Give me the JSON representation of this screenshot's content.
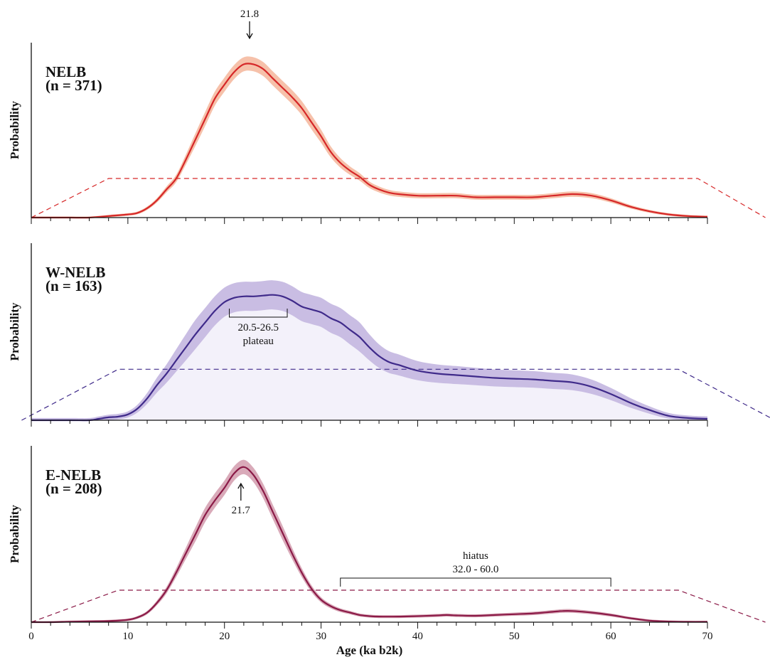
{
  "chart_data": {
    "type": "area",
    "xlabel": "Age (ka b2k)",
    "ylabel": "Probability",
    "xlim": [
      0,
      70
    ],
    "x_ticks": [
      0,
      10,
      20,
      30,
      40,
      50,
      60,
      70
    ],
    "x_tick_labels": [
      "0",
      "10",
      "20",
      "30",
      "40",
      "50",
      "60",
      "70"
    ],
    "grid": false,
    "panels": [
      {
        "title": "NELB",
        "subtitle": "(n = 371)",
        "line_color": "#d62728",
        "band_color": "#f6c1aa",
        "ylim": [
          0,
          1.0
        ],
        "dashed_envelope": [
          [
            0,
            0
          ],
          [
            8,
            0.25
          ],
          [
            69,
            0.25
          ],
          [
            76,
            0
          ]
        ],
        "points": [
          [
            0,
            0
          ],
          [
            2,
            0
          ],
          [
            4,
            0
          ],
          [
            6,
            0
          ],
          [
            8,
            0.01
          ],
          [
            10,
            0.02
          ],
          [
            11,
            0.03
          ],
          [
            12,
            0.06
          ],
          [
            13,
            0.11
          ],
          [
            14,
            0.18
          ],
          [
            15,
            0.25
          ],
          [
            16,
            0.37
          ],
          [
            17,
            0.5
          ],
          [
            18,
            0.63
          ],
          [
            19,
            0.76
          ],
          [
            20,
            0.85
          ],
          [
            21,
            0.93
          ],
          [
            22,
            0.98
          ],
          [
            23,
            0.98
          ],
          [
            24,
            0.95
          ],
          [
            25,
            0.89
          ],
          [
            26,
            0.83
          ],
          [
            27,
            0.77
          ],
          [
            28,
            0.7
          ],
          [
            29,
            0.61
          ],
          [
            30,
            0.52
          ],
          [
            31,
            0.42
          ],
          [
            32,
            0.35
          ],
          [
            33,
            0.3
          ],
          [
            34,
            0.26
          ],
          [
            35,
            0.21
          ],
          [
            36,
            0.18
          ],
          [
            37,
            0.16
          ],
          [
            38,
            0.15
          ],
          [
            40,
            0.14
          ],
          [
            42,
            0.14
          ],
          [
            44,
            0.14
          ],
          [
            46,
            0.13
          ],
          [
            48,
            0.13
          ],
          [
            50,
            0.13
          ],
          [
            52,
            0.13
          ],
          [
            54,
            0.14
          ],
          [
            56,
            0.15
          ],
          [
            58,
            0.14
          ],
          [
            60,
            0.11
          ],
          [
            62,
            0.07
          ],
          [
            64,
            0.04
          ],
          [
            66,
            0.02
          ],
          [
            68,
            0.01
          ],
          [
            70,
            0.005
          ]
        ],
        "band_halfwidth": 0.045,
        "annotations": [
          {
            "text": "21.8",
            "x": 22.6,
            "kind": "arrow-down"
          }
        ]
      },
      {
        "title": "W-NELB",
        "subtitle": "(n = 163)",
        "line_color": "#3f2a8a",
        "band_color": "#c9bde3",
        "ylim": [
          0,
          1.0
        ],
        "dashed_envelope": [
          [
            -1,
            0
          ],
          [
            9,
            0.35
          ],
          [
            67,
            0.35
          ],
          [
            77,
            0
          ]
        ],
        "points": [
          [
            0,
            0
          ],
          [
            4,
            0
          ],
          [
            6,
            0
          ],
          [
            7,
            0.01
          ],
          [
            8,
            0.02
          ],
          [
            9,
            0.025
          ],
          [
            10,
            0.04
          ],
          [
            11,
            0.08
          ],
          [
            12,
            0.15
          ],
          [
            13,
            0.24
          ],
          [
            14,
            0.32
          ],
          [
            15,
            0.41
          ],
          [
            16,
            0.5
          ],
          [
            17,
            0.59
          ],
          [
            18,
            0.67
          ],
          [
            19,
            0.75
          ],
          [
            20,
            0.81
          ],
          [
            21,
            0.84
          ],
          [
            22,
            0.85
          ],
          [
            23,
            0.85
          ],
          [
            24,
            0.855
          ],
          [
            25,
            0.86
          ],
          [
            26,
            0.85
          ],
          [
            27,
            0.82
          ],
          [
            28,
            0.78
          ],
          [
            29,
            0.76
          ],
          [
            30,
            0.74
          ],
          [
            31,
            0.7
          ],
          [
            32,
            0.67
          ],
          [
            33,
            0.62
          ],
          [
            34,
            0.57
          ],
          [
            35,
            0.5
          ],
          [
            36,
            0.44
          ],
          [
            37,
            0.4
          ],
          [
            38,
            0.38
          ],
          [
            40,
            0.34
          ],
          [
            42,
            0.32
          ],
          [
            44,
            0.31
          ],
          [
            46,
            0.3
          ],
          [
            48,
            0.29
          ],
          [
            50,
            0.285
          ],
          [
            52,
            0.28
          ],
          [
            54,
            0.27
          ],
          [
            56,
            0.26
          ],
          [
            58,
            0.23
          ],
          [
            60,
            0.18
          ],
          [
            62,
            0.12
          ],
          [
            64,
            0.07
          ],
          [
            66,
            0.03
          ],
          [
            68,
            0.015
          ],
          [
            70,
            0.01
          ]
        ],
        "band_halfwidth": 0.1,
        "annotations": [
          {
            "text": "20.5-26.5",
            "x_range": [
              20.5,
              26.5
            ],
            "kind": "bracket"
          },
          {
            "text": "plateau",
            "x": 23.5,
            "kind": "label"
          }
        ]
      },
      {
        "title": "E-NELB",
        "subtitle": "(n = 208)",
        "line_color": "#8b1a47",
        "band_color": "#d9aab9",
        "ylim": [
          0,
          1.0
        ],
        "dashed_envelope": [
          [
            0,
            0
          ],
          [
            9,
            0.2
          ],
          [
            67,
            0.2
          ],
          [
            76,
            0
          ]
        ],
        "points": [
          [
            0,
            0
          ],
          [
            2,
            0
          ],
          [
            4,
            0.003
          ],
          [
            6,
            0.005
          ],
          [
            8,
            0.007
          ],
          [
            10,
            0.015
          ],
          [
            11,
            0.03
          ],
          [
            12,
            0.06
          ],
          [
            13,
            0.12
          ],
          [
            14,
            0.2
          ],
          [
            15,
            0.31
          ],
          [
            16,
            0.43
          ],
          [
            17,
            0.55
          ],
          [
            18,
            0.67
          ],
          [
            19,
            0.76
          ],
          [
            20,
            0.84
          ],
          [
            21,
            0.93
          ],
          [
            22,
            0.97
          ],
          [
            23,
            0.92
          ],
          [
            24,
            0.82
          ],
          [
            25,
            0.69
          ],
          [
            26,
            0.56
          ],
          [
            27,
            0.43
          ],
          [
            28,
            0.31
          ],
          [
            29,
            0.21
          ],
          [
            30,
            0.14
          ],
          [
            31,
            0.1
          ],
          [
            32,
            0.075
          ],
          [
            33,
            0.06
          ],
          [
            34,
            0.045
          ],
          [
            35,
            0.038
          ],
          [
            36,
            0.035
          ],
          [
            38,
            0.035
          ],
          [
            40,
            0.038
          ],
          [
            42,
            0.042
          ],
          [
            43,
            0.045
          ],
          [
            44,
            0.042
          ],
          [
            46,
            0.04
          ],
          [
            48,
            0.045
          ],
          [
            50,
            0.05
          ],
          [
            52,
            0.055
          ],
          [
            54,
            0.065
          ],
          [
            55,
            0.07
          ],
          [
            56,
            0.07
          ],
          [
            58,
            0.06
          ],
          [
            60,
            0.045
          ],
          [
            62,
            0.025
          ],
          [
            64,
            0.01
          ],
          [
            66,
            0.004
          ],
          [
            68,
            0.002
          ],
          [
            70,
            0.002
          ]
        ],
        "band_halfwidth": 0.045,
        "annotations": [
          {
            "text": "21.7",
            "x": 21.7,
            "kind": "arrow-up"
          },
          {
            "text": "hiatus",
            "x_range": [
              32.0,
              60.0
            ],
            "kind": "bracket"
          },
          {
            "text": "32.0 - 60.0",
            "x_range": [
              32.0,
              60.0
            ],
            "kind": "label"
          }
        ]
      }
    ]
  }
}
